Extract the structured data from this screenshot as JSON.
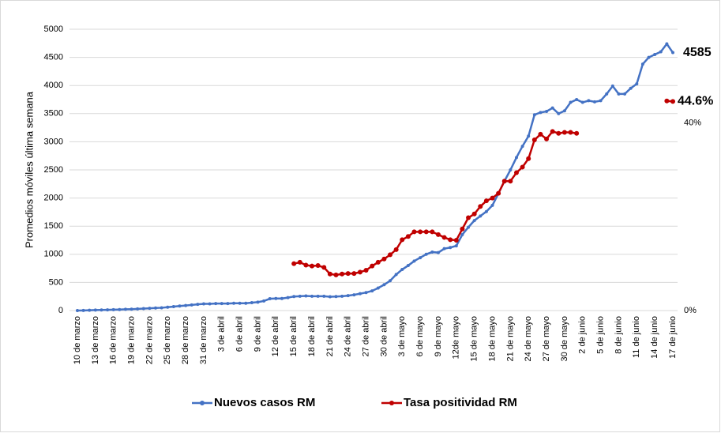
{
  "chart_data": {
    "type": "line",
    "y_label": "Promedios móviles última semana",
    "categories": [
      "10 de marzo",
      null,
      null,
      "13 de marzo",
      null,
      null,
      "16 de marzo",
      null,
      null,
      "19 de marzo",
      null,
      null,
      "22 de marzo",
      null,
      null,
      "25 de marzo",
      null,
      null,
      "28 de marzo",
      null,
      null,
      "31 de marzo",
      null,
      null,
      "3 de abril",
      null,
      null,
      "6 de abril",
      null,
      null,
      "9 de abril",
      null,
      null,
      "12 de abril",
      null,
      null,
      "15 de abril",
      null,
      null,
      "18 de abril",
      null,
      null,
      "21 de abril",
      null,
      null,
      "24 de abril",
      null,
      null,
      "27 de abril",
      null,
      null,
      "30 de abril",
      null,
      null,
      "3 de mayo",
      null,
      null,
      "6 de mayo",
      null,
      null,
      "9 de mayo",
      null,
      null,
      "12de mayo",
      null,
      null,
      "15 de mayo",
      null,
      null,
      "18 de mayo",
      null,
      null,
      "21 de mayo",
      null,
      null,
      "24 de mayo",
      null,
      null,
      "27 de mayo",
      null,
      null,
      "30 de mayo",
      null,
      null,
      "2 de junio",
      null,
      null,
      "5 de junio",
      null,
      null,
      "8 de junio",
      null,
      null,
      "11 de junio",
      null,
      null,
      "14 de junio",
      null,
      null,
      "17 de junio"
    ],
    "series": [
      {
        "name": "Nuevos casos RM",
        "color": "#4472c4",
        "axis": "y",
        "values": [
          0,
          2,
          5,
          8,
          10,
          12,
          15,
          18,
          22,
          25,
          30,
          35,
          40,
          45,
          50,
          60,
          70,
          80,
          90,
          100,
          110,
          120,
          120,
          125,
          125,
          125,
          130,
          130,
          130,
          140,
          150,
          170,
          210,
          215,
          215,
          230,
          250,
          255,
          260,
          255,
          255,
          255,
          245,
          250,
          255,
          265,
          280,
          300,
          320,
          350,
          400,
          460,
          530,
          640,
          730,
          800,
          880,
          940,
          1000,
          1040,
          1030,
          1100,
          1120,
          1150,
          1350,
          1480,
          1600,
          1680,
          1760,
          1870,
          2080,
          2300,
          2500,
          2720,
          2920,
          3100,
          3480,
          3520,
          3540,
          3600,
          3500,
          3550,
          3700,
          3750,
          3700,
          3730,
          3710,
          3730,
          3850,
          3990,
          3850,
          3850,
          3950,
          4030,
          4380,
          4500,
          4550,
          4600,
          4740,
          4585
        ]
      },
      {
        "name": "Tasa positividad RM",
        "color": "#c00000",
        "axis": "y2",
        "values": [
          null,
          null,
          null,
          null,
          null,
          null,
          null,
          null,
          null,
          null,
          null,
          null,
          null,
          null,
          null,
          null,
          null,
          null,
          null,
          null,
          null,
          null,
          null,
          null,
          null,
          null,
          null,
          null,
          null,
          null,
          null,
          null,
          null,
          null,
          null,
          null,
          10.0,
          10.3,
          9.7,
          9.5,
          9.6,
          9.2,
          7.8,
          7.6,
          7.8,
          7.9,
          7.9,
          8.2,
          8.6,
          9.5,
          10.3,
          11.0,
          11.9,
          13.0,
          15.1,
          15.8,
          16.8,
          16.8,
          16.8,
          16.8,
          16.2,
          15.6,
          15.1,
          15.0,
          17.4,
          19.8,
          20.6,
          22.2,
          23.4,
          24.0,
          25.0,
          27.6,
          27.6,
          29.4,
          30.6,
          32.4,
          36.4,
          37.6,
          36.6,
          38.2,
          37.8,
          38.0,
          38.0,
          37.8,
          null,
          null,
          null,
          null,
          null,
          null,
          null,
          null,
          null,
          null,
          null,
          null,
          null,
          null,
          44.7,
          44.6
        ],
        "value_labels": [
          null,
          null,
          null,
          null,
          null,
          null,
          null,
          null,
          null,
          null,
          null,
          null,
          null,
          null,
          null,
          null,
          null,
          null,
          null,
          null,
          null,
          null,
          null,
          null,
          null,
          null,
          null,
          null,
          null,
          null,
          null,
          null,
          null,
          null,
          null,
          null,
          null,
          null,
          null,
          null,
          null,
          null,
          null,
          null,
          null,
          null,
          null,
          null,
          null,
          null,
          null,
          null,
          null,
          null,
          null,
          null,
          null,
          null,
          null,
          null,
          null,
          null,
          null,
          null,
          null,
          null,
          null,
          null,
          null,
          null,
          null,
          null,
          null,
          null,
          null,
          null,
          null,
          null,
          null,
          null,
          null,
          null,
          null,
          null,
          null,
          null,
          null,
          null,
          null,
          null,
          null,
          null,
          null,
          null,
          null,
          null,
          null,
          null,
          null,
          "44.6%"
        ]
      }
    ],
    "ylim": [
      0,
      5000
    ],
    "yticks": [
      0,
      500,
      1000,
      1500,
      2000,
      2500,
      3000,
      3500,
      4000,
      4500,
      5000
    ],
    "y2lim": [
      0,
      60
    ],
    "y2ticks": [
      {
        "value": 0,
        "label": "0%"
      },
      {
        "value": 40,
        "label": "40%"
      }
    ],
    "grid": true,
    "legend": "bottom"
  }
}
